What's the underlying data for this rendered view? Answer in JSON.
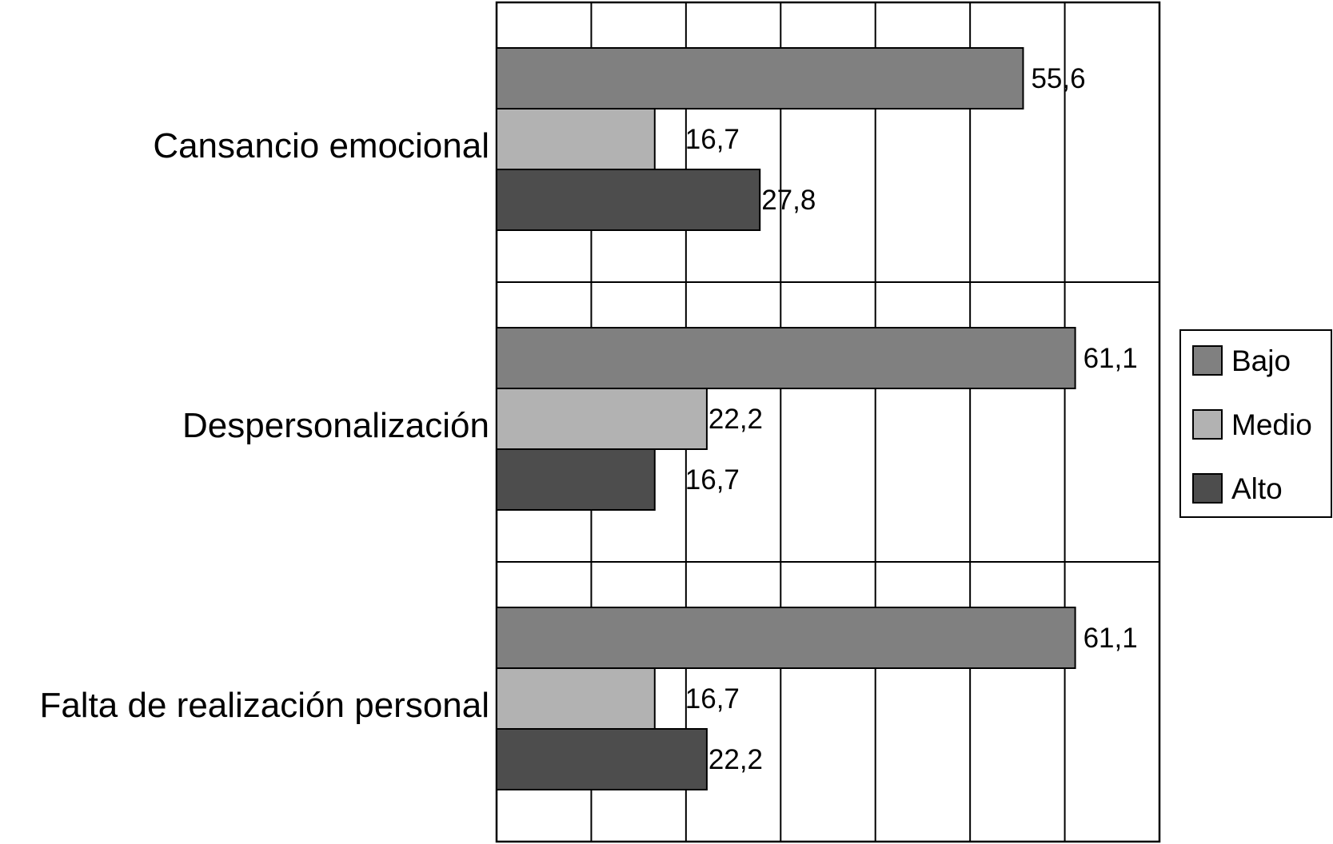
{
  "chart_data": {
    "type": "bar",
    "orientation": "horizontal",
    "title": "",
    "xlabel": "",
    "ylabel": "",
    "grid": true,
    "legend_position": "right",
    "categories": [
      "Cansancio emocional",
      "Despersonalización",
      "Falta de realización personal"
    ],
    "series": [
      {
        "name": "Bajo",
        "color": "#808080",
        "values": [
          55.6,
          61.1,
          61.1
        ],
        "labels": [
          "55,6",
          "61,1",
          "61,1"
        ]
      },
      {
        "name": "Medio",
        "color": "#b2b2b2",
        "values": [
          16.7,
          22.2,
          16.7
        ],
        "labels": [
          "16,7",
          "22,2",
          "16,7"
        ]
      },
      {
        "name": "Alto",
        "color": "#4d4d4d",
        "values": [
          27.8,
          16.7,
          22.2
        ],
        "labels": [
          "27,8",
          "16,7",
          "22,2"
        ]
      }
    ]
  }
}
